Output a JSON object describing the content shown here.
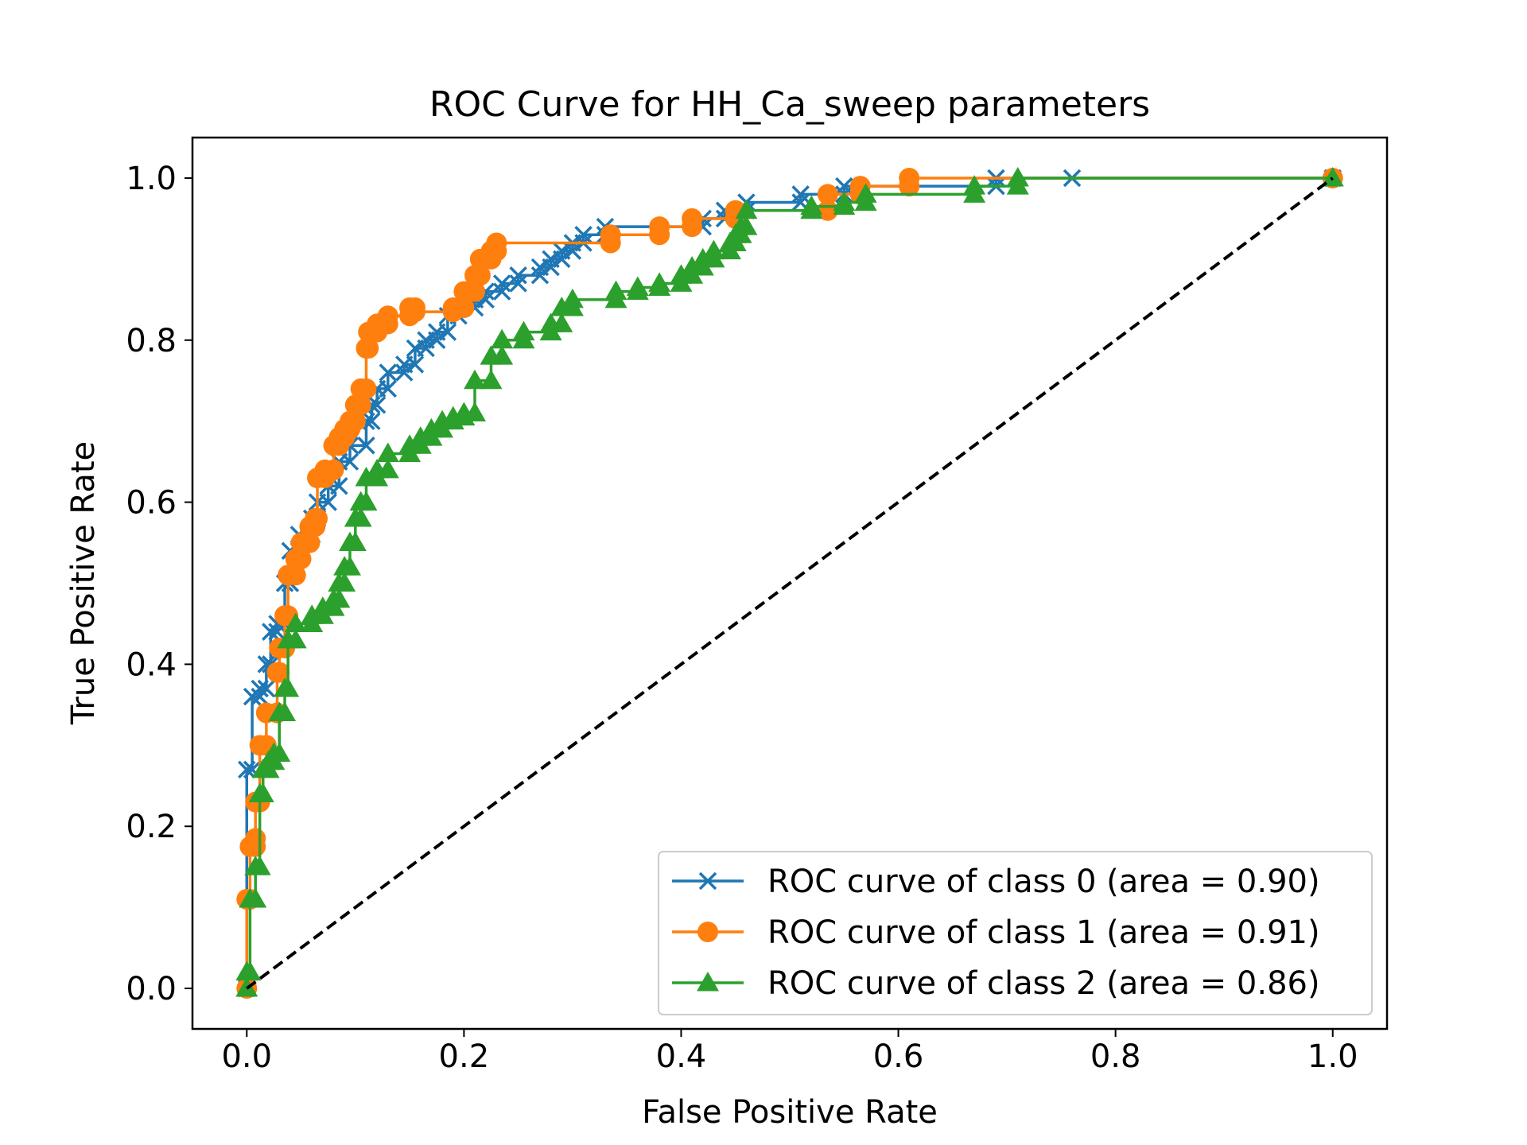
{
  "chart_data": {
    "type": "line",
    "title": "ROC Curve for HH_Ca_sweep parameters",
    "xlabel": "False Positive Rate",
    "ylabel": "True Positive Rate",
    "xlim": [
      -0.05,
      1.05
    ],
    "ylim": [
      -0.05,
      1.05
    ],
    "xticks": [
      0.0,
      0.2,
      0.4,
      0.6,
      0.8,
      1.0
    ],
    "xtick_labels": [
      "0.0",
      "0.2",
      "0.4",
      "0.6",
      "0.8",
      "1.0"
    ],
    "yticks": [
      0.0,
      0.2,
      0.4,
      0.6,
      0.8,
      1.0
    ],
    "ytick_labels": [
      "0.0",
      "0.2",
      "0.4",
      "0.6",
      "0.8",
      "1.0"
    ],
    "grid": false,
    "legend_position": "lower-right",
    "series": [
      {
        "name": "ROC curve of class 0 (area =  0.90)",
        "color": "#1f77b4",
        "marker": "x",
        "points": [
          [
            0.0,
            0.0
          ],
          [
            0.0,
            0.27
          ],
          [
            0.005,
            0.27
          ],
          [
            0.005,
            0.36
          ],
          [
            0.012,
            0.36
          ],
          [
            0.012,
            0.37
          ],
          [
            0.018,
            0.37
          ],
          [
            0.018,
            0.4
          ],
          [
            0.022,
            0.4
          ],
          [
            0.022,
            0.44
          ],
          [
            0.028,
            0.44
          ],
          [
            0.028,
            0.45
          ],
          [
            0.035,
            0.45
          ],
          [
            0.035,
            0.5
          ],
          [
            0.04,
            0.5
          ],
          [
            0.04,
            0.54
          ],
          [
            0.048,
            0.54
          ],
          [
            0.048,
            0.56
          ],
          [
            0.06,
            0.56
          ],
          [
            0.06,
            0.58
          ],
          [
            0.065,
            0.58
          ],
          [
            0.065,
            0.6
          ],
          [
            0.075,
            0.6
          ],
          [
            0.075,
            0.62
          ],
          [
            0.085,
            0.62
          ],
          [
            0.085,
            0.65
          ],
          [
            0.095,
            0.65
          ],
          [
            0.095,
            0.67
          ],
          [
            0.11,
            0.67
          ],
          [
            0.11,
            0.7
          ],
          [
            0.115,
            0.7
          ],
          [
            0.115,
            0.72
          ],
          [
            0.12,
            0.72
          ],
          [
            0.12,
            0.74
          ],
          [
            0.13,
            0.74
          ],
          [
            0.13,
            0.76
          ],
          [
            0.145,
            0.76
          ],
          [
            0.145,
            0.77
          ],
          [
            0.155,
            0.77
          ],
          [
            0.155,
            0.79
          ],
          [
            0.165,
            0.79
          ],
          [
            0.165,
            0.8
          ],
          [
            0.175,
            0.8
          ],
          [
            0.175,
            0.81
          ],
          [
            0.185,
            0.81
          ],
          [
            0.185,
            0.83
          ],
          [
            0.195,
            0.83
          ],
          [
            0.195,
            0.84
          ],
          [
            0.21,
            0.84
          ],
          [
            0.21,
            0.85
          ],
          [
            0.22,
            0.85
          ],
          [
            0.22,
            0.86
          ],
          [
            0.235,
            0.86
          ],
          [
            0.235,
            0.87
          ],
          [
            0.25,
            0.87
          ],
          [
            0.25,
            0.88
          ],
          [
            0.27,
            0.88
          ],
          [
            0.27,
            0.89
          ],
          [
            0.28,
            0.89
          ],
          [
            0.28,
            0.9
          ],
          [
            0.29,
            0.9
          ],
          [
            0.29,
            0.91
          ],
          [
            0.3,
            0.91
          ],
          [
            0.3,
            0.92
          ],
          [
            0.31,
            0.92
          ],
          [
            0.31,
            0.93
          ],
          [
            0.33,
            0.93
          ],
          [
            0.33,
            0.94
          ],
          [
            0.42,
            0.94
          ],
          [
            0.42,
            0.95
          ],
          [
            0.44,
            0.95
          ],
          [
            0.44,
            0.96
          ],
          [
            0.46,
            0.96
          ],
          [
            0.46,
            0.97
          ],
          [
            0.51,
            0.97
          ],
          [
            0.51,
            0.98
          ],
          [
            0.55,
            0.98
          ],
          [
            0.55,
            0.99
          ],
          [
            0.69,
            0.99
          ],
          [
            0.69,
            1.0
          ],
          [
            0.76,
            1.0
          ],
          [
            1.0,
            1.0
          ]
        ]
      },
      {
        "name": "ROC curve of class 1 (area =  0.91)",
        "color": "#ff7f0e",
        "marker": "o",
        "points": [
          [
            0.0,
            0.0
          ],
          [
            0.0,
            0.11
          ],
          [
            0.003,
            0.11
          ],
          [
            0.003,
            0.175
          ],
          [
            0.008,
            0.175
          ],
          [
            0.008,
            0.185
          ],
          [
            0.008,
            0.23
          ],
          [
            0.012,
            0.23
          ],
          [
            0.012,
            0.3
          ],
          [
            0.018,
            0.3
          ],
          [
            0.018,
            0.34
          ],
          [
            0.028,
            0.34
          ],
          [
            0.028,
            0.39
          ],
          [
            0.03,
            0.39
          ],
          [
            0.03,
            0.42
          ],
          [
            0.035,
            0.42
          ],
          [
            0.035,
            0.46
          ],
          [
            0.038,
            0.46
          ],
          [
            0.038,
            0.51
          ],
          [
            0.045,
            0.51
          ],
          [
            0.045,
            0.53
          ],
          [
            0.05,
            0.53
          ],
          [
            0.05,
            0.55
          ],
          [
            0.058,
            0.55
          ],
          [
            0.058,
            0.57
          ],
          [
            0.063,
            0.57
          ],
          [
            0.063,
            0.58
          ],
          [
            0.065,
            0.58
          ],
          [
            0.065,
            0.63
          ],
          [
            0.072,
            0.63
          ],
          [
            0.072,
            0.64
          ],
          [
            0.08,
            0.64
          ],
          [
            0.08,
            0.67
          ],
          [
            0.085,
            0.67
          ],
          [
            0.085,
            0.68
          ],
          [
            0.09,
            0.68
          ],
          [
            0.09,
            0.69
          ],
          [
            0.095,
            0.69
          ],
          [
            0.095,
            0.7
          ],
          [
            0.1,
            0.7
          ],
          [
            0.1,
            0.72
          ],
          [
            0.105,
            0.72
          ],
          [
            0.105,
            0.74
          ],
          [
            0.11,
            0.74
          ],
          [
            0.11,
            0.79
          ],
          [
            0.112,
            0.79
          ],
          [
            0.112,
            0.81
          ],
          [
            0.12,
            0.81
          ],
          [
            0.12,
            0.82
          ],
          [
            0.13,
            0.82
          ],
          [
            0.13,
            0.83
          ],
          [
            0.15,
            0.83
          ],
          [
            0.15,
            0.84
          ],
          [
            0.155,
            0.84
          ],
          [
            0.155,
            0.835
          ],
          [
            0.19,
            0.835
          ],
          [
            0.19,
            0.84
          ],
          [
            0.2,
            0.84
          ],
          [
            0.2,
            0.86
          ],
          [
            0.21,
            0.86
          ],
          [
            0.21,
            0.88
          ],
          [
            0.215,
            0.88
          ],
          [
            0.215,
            0.9
          ],
          [
            0.225,
            0.9
          ],
          [
            0.225,
            0.91
          ],
          [
            0.23,
            0.91
          ],
          [
            0.23,
            0.92
          ],
          [
            0.335,
            0.92
          ],
          [
            0.335,
            0.93
          ],
          [
            0.38,
            0.93
          ],
          [
            0.38,
            0.94
          ],
          [
            0.41,
            0.94
          ],
          [
            0.41,
            0.95
          ],
          [
            0.45,
            0.95
          ],
          [
            0.45,
            0.96
          ],
          [
            0.535,
            0.96
          ],
          [
            0.535,
            0.98
          ],
          [
            0.565,
            0.98
          ],
          [
            0.565,
            0.99
          ],
          [
            0.61,
            0.99
          ],
          [
            0.61,
            1.0
          ],
          [
            1.0,
            1.0
          ]
        ]
      },
      {
        "name": "ROC curve of class 2 (area =  0.86)",
        "color": "#2ca02c",
        "marker": "^",
        "points": [
          [
            0.0,
            0.0
          ],
          [
            0.0,
            0.02
          ],
          [
            0.003,
            0.02
          ],
          [
            0.003,
            0.11
          ],
          [
            0.008,
            0.11
          ],
          [
            0.008,
            0.15
          ],
          [
            0.012,
            0.15
          ],
          [
            0.012,
            0.24
          ],
          [
            0.015,
            0.24
          ],
          [
            0.015,
            0.27
          ],
          [
            0.02,
            0.27
          ],
          [
            0.02,
            0.28
          ],
          [
            0.025,
            0.28
          ],
          [
            0.025,
            0.29
          ],
          [
            0.03,
            0.29
          ],
          [
            0.03,
            0.34
          ],
          [
            0.035,
            0.34
          ],
          [
            0.035,
            0.37
          ],
          [
            0.038,
            0.37
          ],
          [
            0.038,
            0.43
          ],
          [
            0.045,
            0.43
          ],
          [
            0.045,
            0.45
          ],
          [
            0.06,
            0.45
          ],
          [
            0.06,
            0.46
          ],
          [
            0.07,
            0.46
          ],
          [
            0.07,
            0.47
          ],
          [
            0.08,
            0.47
          ],
          [
            0.08,
            0.48
          ],
          [
            0.085,
            0.48
          ],
          [
            0.085,
            0.5
          ],
          [
            0.09,
            0.5
          ],
          [
            0.09,
            0.52
          ],
          [
            0.095,
            0.52
          ],
          [
            0.095,
            0.55
          ],
          [
            0.1,
            0.55
          ],
          [
            0.1,
            0.58
          ],
          [
            0.105,
            0.58
          ],
          [
            0.105,
            0.6
          ],
          [
            0.11,
            0.6
          ],
          [
            0.11,
            0.63
          ],
          [
            0.12,
            0.63
          ],
          [
            0.12,
            0.64
          ],
          [
            0.13,
            0.64
          ],
          [
            0.13,
            0.66
          ],
          [
            0.15,
            0.66
          ],
          [
            0.15,
            0.67
          ],
          [
            0.16,
            0.67
          ],
          [
            0.16,
            0.68
          ],
          [
            0.17,
            0.68
          ],
          [
            0.17,
            0.69
          ],
          [
            0.18,
            0.69
          ],
          [
            0.18,
            0.7
          ],
          [
            0.19,
            0.7
          ],
          [
            0.19,
            0.705
          ],
          [
            0.2,
            0.705
          ],
          [
            0.2,
            0.71
          ],
          [
            0.21,
            0.71
          ],
          [
            0.21,
            0.75
          ],
          [
            0.225,
            0.75
          ],
          [
            0.225,
            0.78
          ],
          [
            0.235,
            0.78
          ],
          [
            0.235,
            0.8
          ],
          [
            0.255,
            0.8
          ],
          [
            0.255,
            0.81
          ],
          [
            0.28,
            0.81
          ],
          [
            0.28,
            0.82
          ],
          [
            0.29,
            0.82
          ],
          [
            0.29,
            0.84
          ],
          [
            0.3,
            0.84
          ],
          [
            0.3,
            0.85
          ],
          [
            0.34,
            0.85
          ],
          [
            0.34,
            0.86
          ],
          [
            0.36,
            0.86
          ],
          [
            0.36,
            0.865
          ],
          [
            0.38,
            0.865
          ],
          [
            0.38,
            0.87
          ],
          [
            0.4,
            0.87
          ],
          [
            0.4,
            0.88
          ],
          [
            0.41,
            0.88
          ],
          [
            0.41,
            0.89
          ],
          [
            0.42,
            0.89
          ],
          [
            0.42,
            0.9
          ],
          [
            0.43,
            0.9
          ],
          [
            0.43,
            0.91
          ],
          [
            0.445,
            0.91
          ],
          [
            0.445,
            0.92
          ],
          [
            0.45,
            0.92
          ],
          [
            0.45,
            0.93
          ],
          [
            0.455,
            0.93
          ],
          [
            0.455,
            0.94
          ],
          [
            0.46,
            0.94
          ],
          [
            0.46,
            0.96
          ],
          [
            0.52,
            0.96
          ],
          [
            0.52,
            0.965
          ],
          [
            0.55,
            0.965
          ],
          [
            0.55,
            0.97
          ],
          [
            0.57,
            0.97
          ],
          [
            0.57,
            0.98
          ],
          [
            0.67,
            0.98
          ],
          [
            0.67,
            0.99
          ],
          [
            0.71,
            0.99
          ],
          [
            0.71,
            1.0
          ],
          [
            1.0,
            1.0
          ]
        ]
      },
      {
        "name": "",
        "color": "#000000",
        "style": "dashed",
        "marker": "none",
        "points": [
          [
            0.0,
            0.0
          ],
          [
            1.0,
            1.0
          ]
        ]
      }
    ]
  }
}
